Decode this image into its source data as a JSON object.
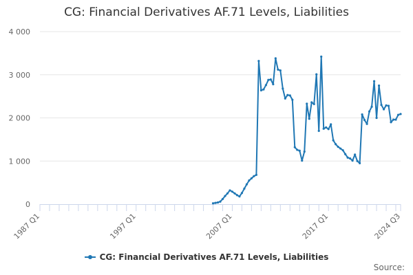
{
  "page": {
    "title": "CG: Financial Derivatives AF.71 Levels, Liabilities",
    "credits": "Source:"
  },
  "colors": {
    "series": "#1f77b4",
    "grid": "#e6e6e6",
    "axis": "#ccd6eb"
  },
  "chart_data": {
    "type": "line",
    "title": "CG: Financial Derivatives AF.71 Levels, Liabilities",
    "xlabel": "",
    "ylabel": "",
    "x_range": [
      "1987 Q1",
      "2024 Q3"
    ],
    "ylim": [
      0,
      4000
    ],
    "y_ticks": [
      0,
      1000,
      2000,
      3000,
      4000
    ],
    "y_tick_labels": [
      "0",
      "1 000",
      "2 000",
      "3 000",
      "4 000"
    ],
    "x_ticks": [
      "1987 Q1",
      "1997 Q1",
      "2007 Q1",
      "2017 Q1",
      "2024 Q3"
    ],
    "grid": true,
    "legend_position": "bottom-center",
    "series": [
      {
        "name": "CG: Financial Derivatives AF.71 Levels, Liabilities",
        "x": [
          "2005 Q1",
          "2005 Q2",
          "2005 Q3",
          "2005 Q4",
          "2006 Q1",
          "2006 Q2",
          "2006 Q3",
          "2006 Q4",
          "2007 Q1",
          "2007 Q2",
          "2007 Q3",
          "2007 Q4",
          "2008 Q1",
          "2008 Q2",
          "2008 Q3",
          "2008 Q4",
          "2009 Q1",
          "2009 Q2",
          "2009 Q3",
          "2009 Q4",
          "2010 Q1",
          "2010 Q2",
          "2010 Q3",
          "2010 Q4",
          "2011 Q1",
          "2011 Q2",
          "2011 Q3",
          "2011 Q4",
          "2012 Q1",
          "2012 Q2",
          "2012 Q3",
          "2012 Q4",
          "2013 Q1",
          "2013 Q2",
          "2013 Q3",
          "2013 Q4",
          "2014 Q1",
          "2014 Q2",
          "2014 Q3",
          "2014 Q4",
          "2015 Q1",
          "2015 Q2",
          "2015 Q3",
          "2015 Q4",
          "2016 Q1",
          "2016 Q2",
          "2016 Q3",
          "2016 Q4",
          "2017 Q1",
          "2017 Q2",
          "2017 Q3",
          "2017 Q4",
          "2018 Q1",
          "2018 Q2",
          "2018 Q3",
          "2018 Q4",
          "2019 Q1",
          "2019 Q2",
          "2019 Q3",
          "2019 Q4",
          "2020 Q1",
          "2020 Q2",
          "2020 Q3",
          "2020 Q4",
          "2021 Q1",
          "2021 Q2",
          "2021 Q3",
          "2021 Q4",
          "2022 Q1",
          "2022 Q2",
          "2022 Q3",
          "2022 Q4",
          "2023 Q1",
          "2023 Q2",
          "2023 Q3",
          "2023 Q4",
          "2024 Q1",
          "2024 Q2",
          "2024 Q3"
        ],
        "values": [
          20,
          30,
          40,
          60,
          120,
          190,
          250,
          320,
          290,
          250,
          210,
          180,
          260,
          360,
          460,
          550,
          600,
          650,
          680,
          3320,
          2640,
          2660,
          2760,
          2880,
          2890,
          2780,
          3380,
          3120,
          3100,
          2680,
          2450,
          2530,
          2520,
          2420,
          1320,
          1260,
          1240,
          1010,
          1220,
          2330,
          1980,
          2360,
          2320,
          3010,
          1700,
          3420,
          1750,
          1780,
          1740,
          1850,
          1480,
          1390,
          1330,
          1290,
          1250,
          1160,
          1080,
          1060,
          1010,
          1150,
          1000,
          950,
          2080,
          1950,
          1860,
          2150,
          2260,
          2850,
          2000,
          2750,
          2300,
          2200,
          2290,
          2280,
          1900,
          1960,
          1960,
          2070,
          2090
        ]
      }
    ]
  }
}
